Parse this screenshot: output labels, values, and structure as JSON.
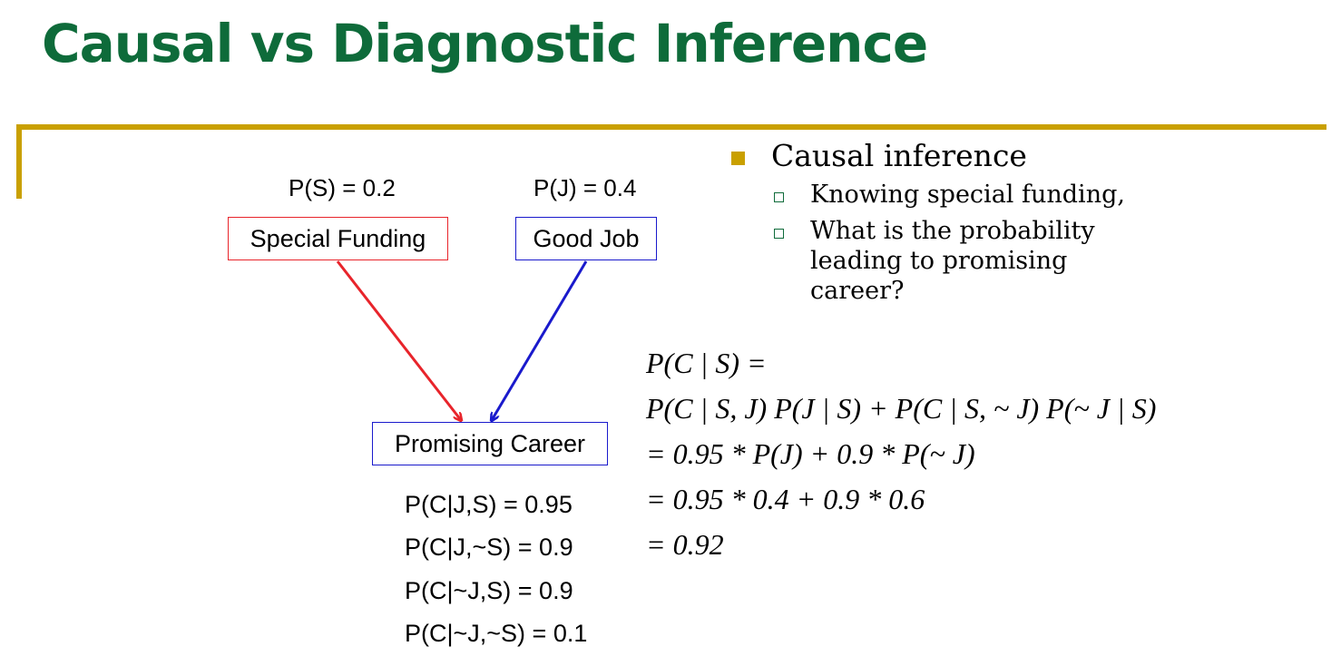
{
  "title": "Causal vs Diagnostic Inference",
  "diagram": {
    "priors": {
      "s": "P(S) = 0.2",
      "j": "P(J) = 0.4"
    },
    "nodes": {
      "special_funding": "Special Funding",
      "good_job": "Good Job",
      "promising_career": "Promising Career"
    },
    "cpt": [
      "P(C|J,S) = 0.95",
      "P(C|J,~S) = 0.9",
      "P(C|~J,S) = 0.9",
      "P(C|~J,~S) = 0.1"
    ],
    "colors": {
      "special_funding": "#e8242b",
      "good_job": "#1a1acc"
    }
  },
  "bullets": {
    "main": "Causal inference",
    "sub": [
      "Knowing special funding,",
      "What is the probability leading to promising career?"
    ]
  },
  "equations": [
    "P(C | S) =",
    "P(C | S, J) P(J | S) + P(C | S, ~ J) P(~ J | S)",
    "= 0.95 * P(J) + 0.9 * P(~ J)",
    "= 0.95 * 0.4 + 0.9 * 0.6",
    "= 0.92"
  ],
  "accent_color": "#c9a000",
  "title_color": "#0e6b3a"
}
